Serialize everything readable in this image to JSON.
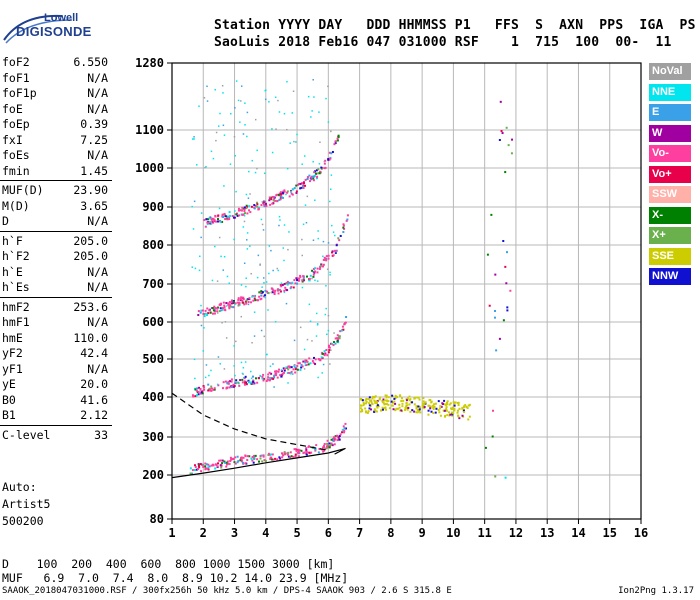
{
  "logo": {
    "line1": "Lowell",
    "line2": "DIGISONDE"
  },
  "header": {
    "line1": "Station YYYY DAY   DDD HHMMSS P1   FFS  S  AXN  PPS  IGA  PS",
    "line2": "SaoLuis 2018 Feb16 047 031000 RSF    1  715  100  00-  11"
  },
  "params": [
    [
      {
        "name": "foF2",
        "value": "6.550"
      },
      {
        "name": "foF1",
        "value": "N/A"
      },
      {
        "name": "foF1p",
        "value": "N/A"
      },
      {
        "name": "foE",
        "value": "N/A"
      },
      {
        "name": "foEp",
        "value": "0.39"
      },
      {
        "name": "fxI",
        "value": "7.25"
      },
      {
        "name": "foEs",
        "value": "N/A"
      },
      {
        "name": "fmin",
        "value": "1.45"
      }
    ],
    [
      {
        "name": "MUF(D)",
        "value": "23.90"
      },
      {
        "name": "M(D)",
        "value": "3.65"
      },
      {
        "name": "D",
        "value": "N/A"
      }
    ],
    [
      {
        "name": "h`F",
        "value": "205.0"
      },
      {
        "name": "h`F2",
        "value": "205.0"
      },
      {
        "name": "h`E",
        "value": "N/A"
      },
      {
        "name": "h`Es",
        "value": "N/A"
      }
    ],
    [
      {
        "name": "hmF2",
        "value": "253.6"
      },
      {
        "name": "hmF1",
        "value": "N/A"
      },
      {
        "name": "hmE",
        "value": "110.0"
      },
      {
        "name": "yF2",
        "value": "42.4"
      },
      {
        "name": "yF1",
        "value": "N/A"
      },
      {
        "name": "yE",
        "value": "20.0"
      },
      {
        "name": "B0",
        "value": "41.6"
      },
      {
        "name": "B1",
        "value": "2.12"
      }
    ],
    [
      {
        "name": "C-level",
        "value": "33"
      }
    ]
  ],
  "auto": {
    "line1": "Auto:",
    "line2": "Artist5",
    "line3": "500200"
  },
  "legend": [
    {
      "label": "NoVal",
      "color": "#a0a0a0"
    },
    {
      "label": "NNE",
      "color": "#00e5ee"
    },
    {
      "label": "E",
      "color": "#3aa0e8"
    },
    {
      "label": "W",
      "color": "#a000a0"
    },
    {
      "label": "Vo-",
      "color": "#ff3fa0"
    },
    {
      "label": "Vo+",
      "color": "#e8004a"
    },
    {
      "label": "SSW",
      "color": "#ffb0a8"
    },
    {
      "label": "X-",
      "color": "#008000"
    },
    {
      "label": "X+",
      "color": "#6ab04c"
    },
    {
      "label": "SSE",
      "color": "#cccc00"
    },
    {
      "label": "NNW",
      "color": "#1010d0"
    }
  ],
  "dmuf": {
    "dline": "D    100  200  400  600  800 1000 1500 3000 [km]",
    "mufline": "MUF   6.9  7.0  7.4  8.0  8.9 10.2 14.0 23.9 [MHz]"
  },
  "footer": {
    "left": "SAAOK_2018047031000.RSF / 300fx256h 50 kHz 5.0 km / DPS-4 SAAOK 903 / 2.6 S 315.8 E",
    "right": "Ion2Png 1.3.17"
  },
  "chart_data": {
    "type": "scatter",
    "xlabel": "",
    "ylabel": "",
    "xlim": [
      1,
      16
    ],
    "xticks": [
      1,
      2,
      3,
      4,
      5,
      6,
      7,
      8,
      9,
      10,
      11,
      12,
      13,
      14,
      15,
      16
    ],
    "yticks": [
      80,
      200,
      300,
      400,
      500,
      600,
      700,
      800,
      900,
      1000,
      1100,
      1280
    ],
    "ylim": [
      80,
      1280
    ],
    "grid": true,
    "traces": [
      {
        "name": "O-trace 1st hop",
        "color": "#ff3fa0",
        "x": [
          1.55,
          2.0,
          3.0,
          4.0,
          5.0,
          5.8,
          6.3,
          6.55
        ],
        "y": [
          215,
          225,
          240,
          250,
          262,
          275,
          300,
          330
        ]
      },
      {
        "name": "O-trace 2nd hop",
        "color": "#ff3fa0",
        "x": [
          1.6,
          2.0,
          3.0,
          4.0,
          5.0,
          5.8,
          6.3,
          6.6
        ],
        "y": [
          410,
          425,
          440,
          455,
          480,
          510,
          560,
          620
        ]
      },
      {
        "name": "O-trace 3rd hop",
        "color": "#ff3fa0",
        "x": [
          1.8,
          2.5,
          3.5,
          4.5,
          5.5,
          6.2,
          6.6
        ],
        "y": [
          620,
          640,
          665,
          690,
          730,
          790,
          880
        ]
      },
      {
        "name": "O-trace 4th hop",
        "color": "#ff3fa0",
        "x": [
          2.0,
          3.0,
          4.0,
          5.0,
          5.8,
          6.3
        ],
        "y": [
          860,
          885,
          915,
          950,
          1000,
          1080
        ]
      },
      {
        "name": "Es spread",
        "color": "#cccc00",
        "x": [
          7.0,
          7.5,
          8.0,
          8.5,
          9.0,
          9.5,
          10.0,
          10.5
        ],
        "y": [
          380,
          385,
          390,
          385,
          380,
          375,
          370,
          365
        ]
      }
    ],
    "profile_curves": [
      {
        "name": "electron density profile",
        "style": "solid",
        "x": [
          1.0,
          2.0,
          3.0,
          4.0,
          5.0,
          6.0,
          6.55,
          6.2
        ],
        "y": [
          193,
          205,
          218,
          232,
          245,
          258,
          270,
          255
        ]
      },
      {
        "name": "valley extrapolation",
        "style": "dashed",
        "x": [
          1.0,
          2.0,
          3.0,
          4.0,
          5.0,
          6.0
        ],
        "y": [
          410,
          355,
          320,
          295,
          280,
          265
        ]
      }
    ]
  }
}
